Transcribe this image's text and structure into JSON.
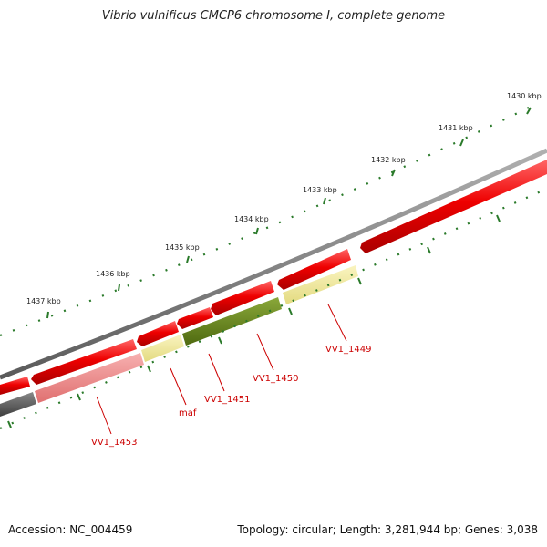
{
  "title": "Vibrio vulnificus CMCP6 chromosome I, complete genome",
  "footer": {
    "accession": "Accession: NC_004459",
    "summary": "Topology: circular; Length: 3,281,944 bp; Genes: 3,038"
  },
  "colors": {
    "backbone": "#777777",
    "forward_cds": "#ee1111",
    "reverse_cds_light": "#ee8888",
    "reverse_cds_dark": "#5a5a5a",
    "pale_feature": "#ede79a",
    "olive_feature": "#6b8a1e",
    "tick": "#2a7a2a",
    "label": "#cc0000"
  },
  "ruler_labels": [
    "1430 kbp",
    "1431 kbp",
    "1432 kbp",
    "1433 kbp",
    "1434 kbp",
    "1435 kbp",
    "1436 kbp",
    "1437 kbp"
  ],
  "gene_labels": [
    "VV1_1449",
    "VV1_1450",
    "VV1_1451",
    "maf",
    "VV1_1453"
  ]
}
